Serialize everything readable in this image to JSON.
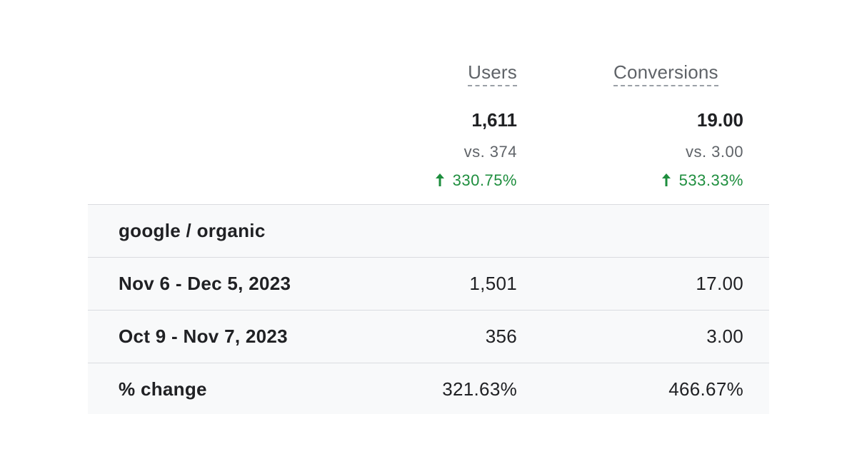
{
  "columns": {
    "users": "Users",
    "conversions": "Conversions"
  },
  "totals": {
    "users": {
      "value": "1,611",
      "comparison": "vs. 374",
      "change": "330.75%",
      "change_direction": "up"
    },
    "conversions": {
      "value": "19.00",
      "comparison": "vs. 3.00",
      "change": "533.33%",
      "change_direction": "up"
    }
  },
  "group_label": "google / organic",
  "rows": [
    {
      "label": "Nov 6 - Dec 5, 2023",
      "users": "1,501",
      "conversions": "17.00"
    },
    {
      "label": "Oct 9 - Nov 7, 2023",
      "users": "356",
      "conversions": "3.00"
    },
    {
      "label": "% change",
      "users": "321.63%",
      "conversions": "466.67%"
    }
  ],
  "colors": {
    "positive": "#1e8e3e",
    "row_background": "#f8f9fa",
    "divider": "#dadce0",
    "muted_text": "#5f6368"
  }
}
